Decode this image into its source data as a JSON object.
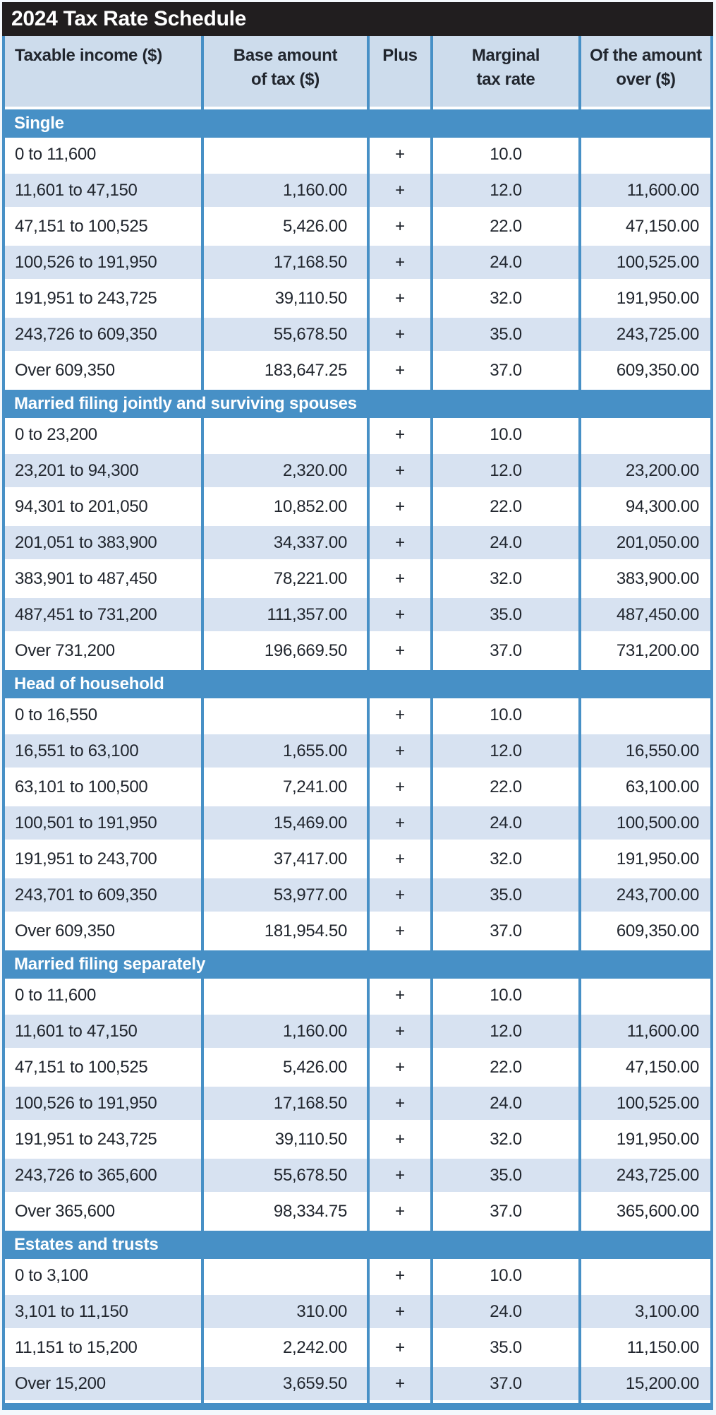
{
  "title": "2024 Tax Rate Schedule",
  "colors": {
    "accent_blue": "#4790c6",
    "title_bar_bg": "#211e1f",
    "title_text": "#ffffff",
    "header_bg": "#cddcec",
    "row_bg": "#ffffff",
    "row_alt_bg": "#d7e2f1",
    "text": "#21262e",
    "page_bg": "#f3f8fc"
  },
  "table": {
    "columns": [
      {
        "label": "Taxable income ($)"
      },
      {
        "label": "Base amount\nof tax ($)"
      },
      {
        "label": "Plus"
      },
      {
        "label": "Marginal\ntax rate"
      },
      {
        "label": "Of the amount\nover ($)"
      }
    ],
    "plus_symbol": "+",
    "sections": [
      {
        "label": "Single",
        "rows": [
          [
            "0 to 11,600",
            "",
            "+",
            "10.0",
            ""
          ],
          [
            "11,601 to 47,150",
            "1,160.00",
            "+",
            "12.0",
            "11,600.00"
          ],
          [
            "47,151 to 100,525",
            "5,426.00",
            "+",
            "22.0",
            "47,150.00"
          ],
          [
            "100,526 to 191,950",
            "17,168.50",
            "+",
            "24.0",
            "100,525.00"
          ],
          [
            "191,951 to 243,725",
            "39,110.50",
            "+",
            "32.0",
            "191,950.00"
          ],
          [
            "243,726 to 609,350",
            "55,678.50",
            "+",
            "35.0",
            "243,725.00"
          ],
          [
            "Over 609,350",
            "183,647.25",
            "+",
            "37.0",
            "609,350.00"
          ]
        ]
      },
      {
        "label": "Married filing jointly and surviving spouses",
        "rows": [
          [
            "0 to 23,200",
            "",
            "+",
            "10.0",
            ""
          ],
          [
            "23,201 to 94,300",
            "2,320.00",
            "+",
            "12.0",
            "23,200.00"
          ],
          [
            "94,301 to 201,050",
            "10,852.00",
            "+",
            "22.0",
            "94,300.00"
          ],
          [
            "201,051 to 383,900",
            "34,337.00",
            "+",
            "24.0",
            "201,050.00"
          ],
          [
            "383,901 to 487,450",
            "78,221.00",
            "+",
            "32.0",
            "383,900.00"
          ],
          [
            "487,451 to 731,200",
            "111,357.00",
            "+",
            "35.0",
            "487,450.00"
          ],
          [
            "Over 731,200",
            "196,669.50",
            "+",
            "37.0",
            "731,200.00"
          ]
        ]
      },
      {
        "label": "Head of household",
        "rows": [
          [
            "0 to 16,550",
            "",
            "+",
            "10.0",
            ""
          ],
          [
            "16,551 to 63,100",
            "1,655.00",
            "+",
            "12.0",
            "16,550.00"
          ],
          [
            "63,101 to 100,500",
            "7,241.00",
            "+",
            "22.0",
            "63,100.00"
          ],
          [
            "100,501 to 191,950",
            "15,469.00",
            "+",
            "24.0",
            "100,500.00"
          ],
          [
            "191,951 to 243,700",
            "37,417.00",
            "+",
            "32.0",
            "191,950.00"
          ],
          [
            "243,701 to 609,350",
            "53,977.00",
            "+",
            "35.0",
            "243,700.00"
          ],
          [
            "Over 609,350",
            "181,954.50",
            "+",
            "37.0",
            "609,350.00"
          ]
        ]
      },
      {
        "label": "Married filing separately",
        "rows": [
          [
            "0 to 11,600",
            "",
            "+",
            "10.0",
            ""
          ],
          [
            "11,601 to 47,150",
            "1,160.00",
            "+",
            "12.0",
            "11,600.00"
          ],
          [
            "47,151 to 100,525",
            "5,426.00",
            "+",
            "22.0",
            "47,150.00"
          ],
          [
            "100,526 to 191,950",
            "17,168.50",
            "+",
            "24.0",
            "100,525.00"
          ],
          [
            "191,951 to 243,725",
            "39,110.50",
            "+",
            "32.0",
            "191,950.00"
          ],
          [
            "243,726 to 365,600",
            "55,678.50",
            "+",
            "35.0",
            "243,725.00"
          ],
          [
            "Over 365,600",
            "98,334.75",
            "+",
            "37.0",
            "365,600.00"
          ]
        ]
      },
      {
        "label": "Estates and trusts",
        "rows": [
          [
            "0 to 3,100",
            "",
            "+",
            "10.0",
            ""
          ],
          [
            "3,101 to 11,150",
            "310.00",
            "+",
            "24.0",
            "3,100.00"
          ],
          [
            "11,151 to 15,200",
            "2,242.00",
            "+",
            "35.0",
            "11,150.00"
          ],
          [
            "Over 15,200",
            "3,659.50",
            "+",
            "37.0",
            "15,200.00"
          ]
        ]
      }
    ]
  }
}
